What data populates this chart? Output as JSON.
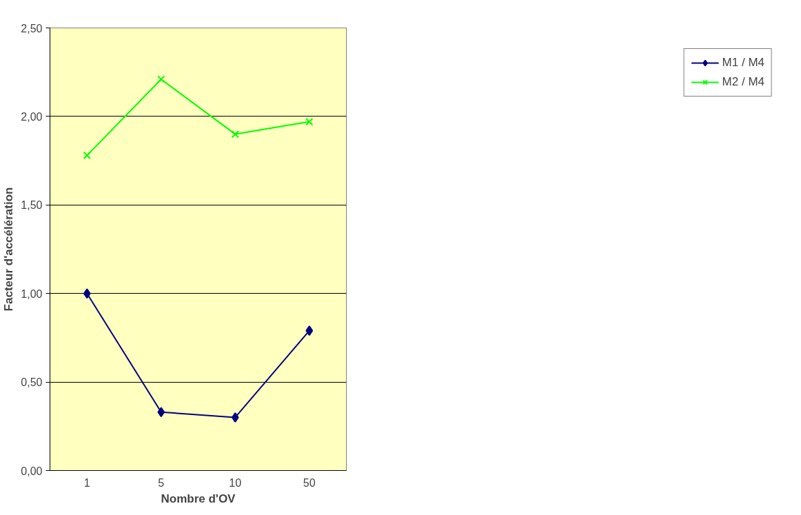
{
  "chart_data": {
    "type": "line",
    "xlabel": "Nombre d'OV",
    "ylabel": "Facteur d'accélération",
    "categories": [
      "1",
      "5",
      "10",
      "50"
    ],
    "series": [
      {
        "name": "M1 / M4",
        "color": "#000080",
        "marker": "diamond",
        "values": [
          1.0,
          0.33,
          0.3,
          0.79
        ]
      },
      {
        "name": "M2 / M4",
        "color": "#00ff00",
        "marker": "cross",
        "values": [
          1.78,
          2.21,
          1.9,
          1.97
        ]
      }
    ],
    "ylim": [
      0,
      2.5
    ],
    "yticks": [
      {
        "value": 0,
        "label": "0,00"
      },
      {
        "value": 0.5,
        "label": "0,50"
      },
      {
        "value": 1,
        "label": "1,00"
      },
      {
        "value": 1.5,
        "label": "1,50"
      },
      {
        "value": 2,
        "label": "2,00"
      },
      {
        "value": 2.5,
        "label": "2,50"
      }
    ],
    "grid": "y",
    "legend": "right",
    "line_style": "solid"
  }
}
